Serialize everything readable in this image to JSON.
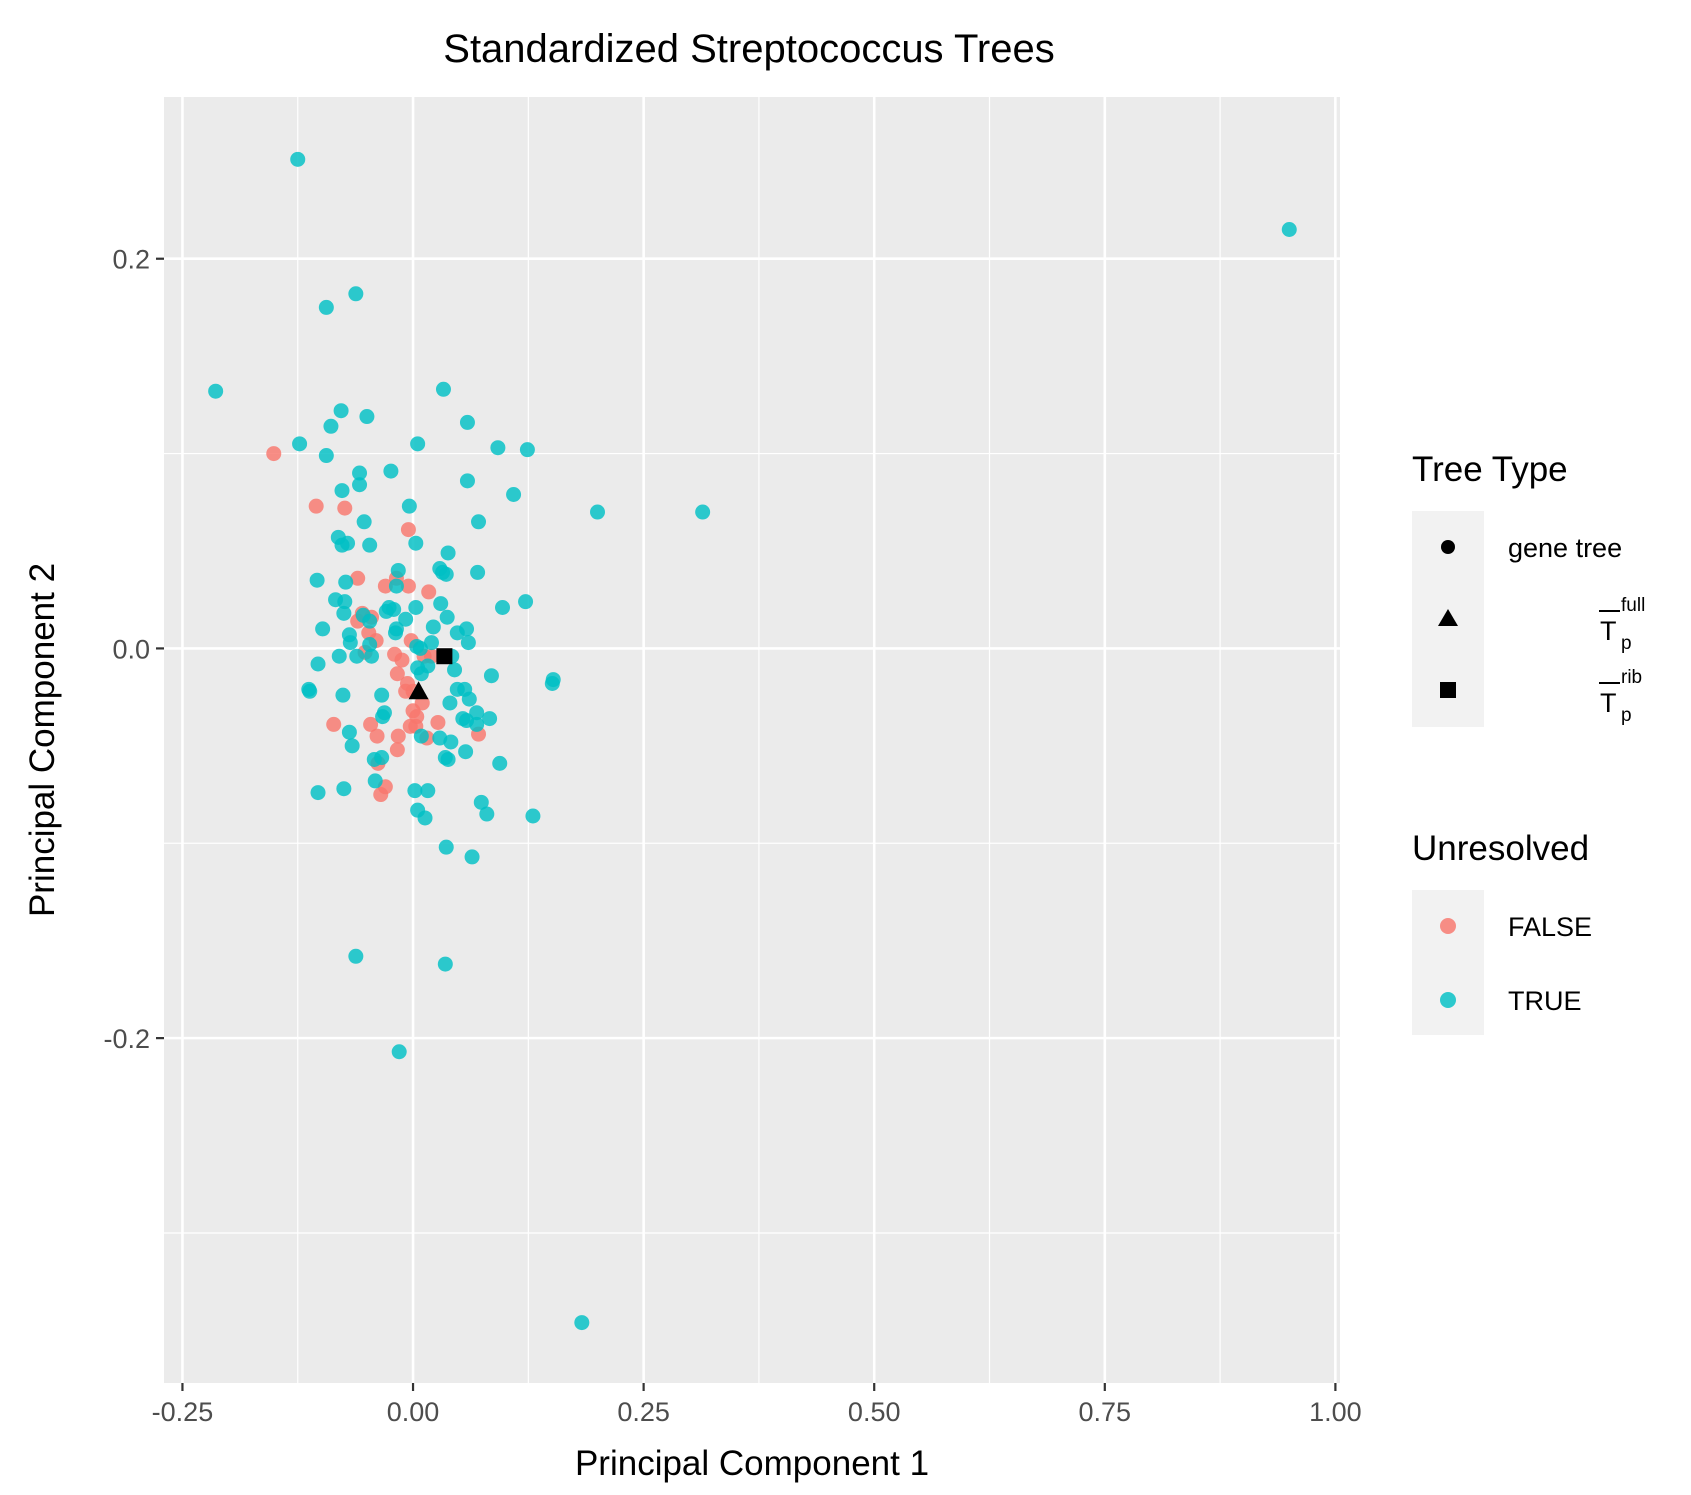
{
  "chart_data": {
    "type": "scatter",
    "title": "Standardized Streptococcus Trees",
    "xlabel": "Principal Component 1",
    "ylabel": "Principal Component 2",
    "xlim": [
      -0.27,
      1.005
    ],
    "ylim": [
      -0.377,
      0.283
    ],
    "x_ticks": [
      -0.25,
      0.0,
      0.25,
      0.5,
      0.75,
      1.0
    ],
    "x_tick_labels": [
      "-0.25",
      "0.00",
      "0.25",
      "0.50",
      "0.75",
      "1.00"
    ],
    "x_minor_ticks": [
      -0.125,
      0.125,
      0.375,
      0.625,
      0.875
    ],
    "y_ticks": [
      0.2,
      0.0,
      -0.2
    ],
    "y_tick_labels": [
      "0.2",
      "0.0",
      "-0.2"
    ],
    "y_minor_ticks": [
      0.1,
      -0.1,
      -0.3
    ],
    "grid": true,
    "panel_background": "#ebebeb",
    "grid_color": "#ffffff",
    "legend_position": "right",
    "legends": [
      {
        "title": "Tree Type",
        "items": [
          {
            "shape": "circle",
            "label": "gene tree"
          },
          {
            "shape": "triangle",
            "label_main": "T",
            "label_sub": "p",
            "label_sup": "full"
          },
          {
            "shape": "square",
            "label_main": "T",
            "label_sub": "p",
            "label_sup": "rib"
          }
        ]
      },
      {
        "title": "Unresolved",
        "items": [
          {
            "label": "FALSE",
            "color": "#f8766d"
          },
          {
            "label": "TRUE",
            "color": "#00bfc4"
          }
        ]
      }
    ],
    "series": [
      {
        "name": "FALSE",
        "color": "#f8766d",
        "points": [
          [
            -0.151,
            0.1
          ],
          [
            -0.105,
            0.073
          ],
          [
            -0.074,
            0.072
          ],
          [
            -0.005,
            0.061
          ],
          [
            -0.06,
            0.036
          ],
          [
            -0.03,
            0.032
          ],
          [
            -0.018,
            0.036
          ],
          [
            -0.005,
            0.032
          ],
          [
            0.017,
            0.029
          ],
          [
            -0.055,
            0.018
          ],
          [
            -0.045,
            0.016
          ],
          [
            -0.06,
            0.014
          ],
          [
            -0.048,
            0.008
          ],
          [
            -0.04,
            0.004
          ],
          [
            -0.002,
            0.004
          ],
          [
            -0.052,
            -0.002
          ],
          [
            -0.02,
            -0.003
          ],
          [
            0.012,
            -0.004
          ],
          [
            -0.012,
            -0.006
          ],
          [
            0.02,
            -0.004
          ],
          [
            -0.017,
            -0.013
          ],
          [
            -0.006,
            -0.018
          ],
          [
            0.0,
            -0.022
          ],
          [
            -0.008,
            -0.022
          ],
          [
            0.0,
            -0.032
          ],
          [
            0.01,
            -0.028
          ],
          [
            0.004,
            -0.035
          ],
          [
            0.027,
            -0.038
          ],
          [
            -0.086,
            -0.039
          ],
          [
            -0.046,
            -0.039
          ],
          [
            -0.003,
            -0.04
          ],
          [
            0.003,
            -0.04
          ],
          [
            -0.039,
            -0.045
          ],
          [
            -0.016,
            -0.045
          ],
          [
            0.015,
            -0.046
          ],
          [
            0.071,
            -0.044
          ],
          [
            -0.017,
            -0.052
          ],
          [
            -0.038,
            -0.059
          ],
          [
            -0.03,
            -0.071
          ],
          [
            -0.035,
            -0.075
          ]
        ]
      },
      {
        "name": "TRUE",
        "color": "#00bfc4",
        "points": [
          [
            -0.125,
            0.251
          ],
          [
            0.95,
            0.215
          ],
          [
            -0.062,
            0.182
          ],
          [
            -0.094,
            0.175
          ],
          [
            -0.214,
            0.132
          ],
          [
            0.033,
            0.133
          ],
          [
            -0.078,
            0.122
          ],
          [
            -0.05,
            0.119
          ],
          [
            0.059,
            0.116
          ],
          [
            -0.089,
            0.114
          ],
          [
            -0.123,
            0.105
          ],
          [
            0.005,
            0.105
          ],
          [
            0.092,
            0.103
          ],
          [
            0.124,
            0.102
          ],
          [
            -0.094,
            0.099
          ],
          [
            -0.024,
            0.091
          ],
          [
            -0.058,
            0.09
          ],
          [
            0.059,
            0.086
          ],
          [
            -0.058,
            0.084
          ],
          [
            -0.077,
            0.081
          ],
          [
            0.109,
            0.079
          ],
          [
            -0.004,
            0.073
          ],
          [
            0.2,
            0.07
          ],
          [
            0.314,
            0.07
          ],
          [
            -0.053,
            0.065
          ],
          [
            0.071,
            0.065
          ],
          [
            -0.081,
            0.057
          ],
          [
            0.003,
            0.054
          ],
          [
            -0.077,
            0.053
          ],
          [
            -0.071,
            0.054
          ],
          [
            -0.047,
            0.053
          ],
          [
            0.038,
            0.049
          ],
          [
            0.029,
            0.041
          ],
          [
            0.032,
            0.039
          ],
          [
            -0.016,
            0.04
          ],
          [
            0.07,
            0.039
          ],
          [
            0.036,
            0.038
          ],
          [
            -0.104,
            0.035
          ],
          [
            -0.073,
            0.034
          ],
          [
            -0.018,
            0.032
          ],
          [
            -0.084,
            0.025
          ],
          [
            -0.074,
            0.024
          ],
          [
            0.03,
            0.023
          ],
          [
            0.122,
            0.024
          ],
          [
            -0.026,
            0.021
          ],
          [
            0.003,
            0.021
          ],
          [
            0.097,
            0.021
          ],
          [
            -0.075,
            0.018
          ],
          [
            -0.029,
            0.019
          ],
          [
            -0.021,
            0.02
          ],
          [
            -0.054,
            0.017
          ],
          [
            0.037,
            0.016
          ],
          [
            -0.047,
            0.014
          ],
          [
            -0.008,
            0.015
          ],
          [
            -0.018,
            0.01
          ],
          [
            0.022,
            0.011
          ],
          [
            -0.098,
            0.01
          ],
          [
            0.058,
            0.01
          ],
          [
            0.048,
            0.008
          ],
          [
            -0.019,
            0.008
          ],
          [
            -0.069,
            0.007
          ],
          [
            -0.047,
            0.002
          ],
          [
            0.02,
            0.003
          ],
          [
            -0.068,
            0.003
          ],
          [
            0.06,
            0.003
          ],
          [
            0.004,
            0.001
          ],
          [
            0.008,
            0.0
          ],
          [
            -0.08,
            -0.004
          ],
          [
            -0.061,
            -0.004
          ],
          [
            -0.045,
            -0.004
          ],
          [
            0.042,
            -0.004
          ],
          [
            -0.103,
            -0.008
          ],
          [
            0.005,
            -0.01
          ],
          [
            0.016,
            -0.009
          ],
          [
            0.009,
            -0.013
          ],
          [
            0.045,
            -0.011
          ],
          [
            0.085,
            -0.014
          ],
          [
            0.152,
            -0.016
          ],
          [
            0.151,
            -0.018
          ],
          [
            -0.113,
            -0.021
          ],
          [
            -0.112,
            -0.022
          ],
          [
            0.048,
            -0.021
          ],
          [
            0.056,
            -0.021
          ],
          [
            -0.076,
            -0.024
          ],
          [
            -0.034,
            -0.024
          ],
          [
            0.061,
            -0.026
          ],
          [
            0.04,
            -0.028
          ],
          [
            -0.031,
            -0.033
          ],
          [
            0.069,
            -0.033
          ],
          [
            -0.033,
            -0.035
          ],
          [
            0.054,
            -0.036
          ],
          [
            0.083,
            -0.036
          ],
          [
            0.058,
            -0.037
          ],
          [
            0.069,
            -0.039
          ],
          [
            -0.069,
            -0.043
          ],
          [
            0.009,
            -0.045
          ],
          [
            0.029,
            -0.046
          ],
          [
            0.041,
            -0.048
          ],
          [
            -0.066,
            -0.05
          ],
          [
            0.057,
            -0.053
          ],
          [
            -0.034,
            -0.056
          ],
          [
            -0.042,
            -0.057
          ],
          [
            0.035,
            -0.056
          ],
          [
            0.038,
            -0.057
          ],
          [
            0.094,
            -0.059
          ],
          [
            -0.041,
            -0.068
          ],
          [
            -0.075,
            -0.072
          ],
          [
            0.002,
            -0.073
          ],
          [
            0.016,
            -0.073
          ],
          [
            -0.103,
            -0.074
          ],
          [
            0.074,
            -0.079
          ],
          [
            0.08,
            -0.085
          ],
          [
            0.005,
            -0.083
          ],
          [
            0.013,
            -0.087
          ],
          [
            0.13,
            -0.086
          ],
          [
            0.036,
            -0.102
          ],
          [
            0.064,
            -0.107
          ],
          [
            -0.062,
            -0.158
          ],
          [
            0.035,
            -0.162
          ],
          [
            -0.015,
            -0.207
          ],
          [
            0.183,
            -0.346
          ]
        ]
      }
    ],
    "special_points": [
      {
        "shape": "triangle",
        "x": 0.006,
        "y": -0.022,
        "color": "#000000"
      },
      {
        "shape": "square",
        "x": 0.034,
        "y": -0.004,
        "color": "#000000"
      }
    ]
  }
}
